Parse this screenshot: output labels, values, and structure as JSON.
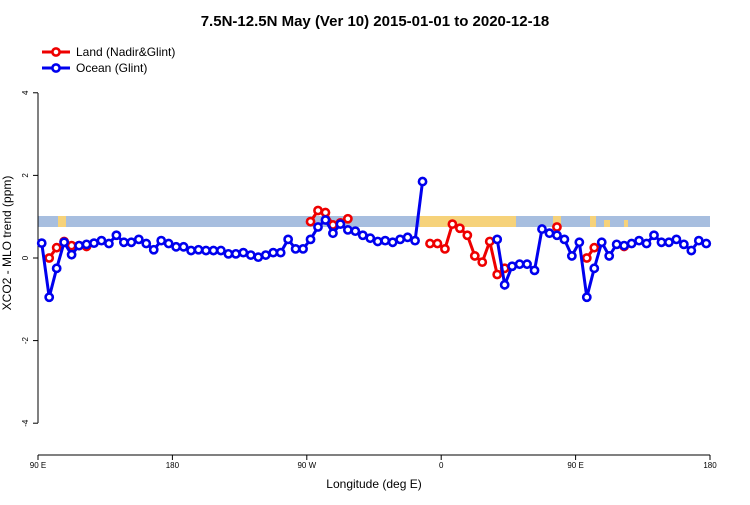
{
  "chart_data": {
    "type": "line",
    "title": "7.5N-12.5N May (Ver 10)   2015-01-01 to 2020-12-18",
    "x_label": "Longitude (deg E)",
    "y_label": "XCO2 - MLO trend (ppm)",
    "x": [
      92.5,
      97.5,
      102.5,
      107.5,
      112.5,
      117.5,
      122.5,
      127.5,
      132.5,
      137.5,
      142.5,
      147.5,
      152.5,
      157.5,
      162.5,
      167.5,
      172.5,
      177.5,
      182.5,
      187.5,
      192.5,
      197.5,
      202.5,
      207.5,
      212.5,
      217.5,
      222.5,
      227.5,
      232.5,
      237.5,
      242.5,
      247.5,
      252.5,
      257.5,
      262.5,
      267.5,
      272.5,
      277.5,
      282.5,
      287.5,
      292.5,
      297.5,
      302.5,
      307.5,
      312.5,
      317.5,
      322.5,
      327.5,
      332.5,
      337.5,
      342.5,
      347.5,
      352.5,
      357.5,
      362.5,
      367.5,
      372.5,
      377.5,
      382.5,
      387.5,
      392.5,
      397.5,
      402.5,
      407.5,
      412.5,
      417.5,
      422.5,
      427.5,
      432.5,
      437.5,
      442.5,
      447.5,
      452.5,
      457.5,
      462.5,
      467.5,
      472.5,
      477.5,
      482.5,
      487.5,
      492.5,
      497.5,
      502.5,
      507.5,
      512.5,
      517.5,
      522.5,
      527.5,
      532.5,
      537.5
    ],
    "series": [
      {
        "name": "Land (Nadir&Glint)",
        "color": "#ee0000",
        "values": [
          null,
          0.0,
          0.25,
          0.4,
          0.3,
          0.3,
          0.28,
          null,
          null,
          null,
          null,
          null,
          null,
          null,
          null,
          null,
          null,
          null,
          null,
          null,
          null,
          null,
          null,
          null,
          null,
          null,
          null,
          null,
          null,
          null,
          null,
          null,
          null,
          null,
          null,
          null,
          0.88,
          1.15,
          1.1,
          0.8,
          0.85,
          0.95,
          null,
          null,
          null,
          null,
          null,
          null,
          null,
          null,
          null,
          null,
          0.35,
          0.35,
          0.22,
          0.82,
          0.72,
          0.55,
          0.05,
          -0.1,
          0.4,
          -0.4,
          -0.25,
          null,
          null,
          null,
          null,
          null,
          null,
          0.75,
          null,
          null,
          null,
          0.0,
          0.25,
          null,
          null,
          null,
          0.28,
          null,
          null,
          null,
          null,
          null,
          null,
          null,
          null,
          null,
          null,
          null
        ]
      },
      {
        "name": "Ocean (Glint)",
        "color": "#0000ee",
        "values": [
          0.36,
          -0.95,
          -0.25,
          0.38,
          0.08,
          0.3,
          0.33,
          0.36,
          0.42,
          0.35,
          0.55,
          0.38,
          0.38,
          0.45,
          0.35,
          0.2,
          0.42,
          0.35,
          0.27,
          0.27,
          0.18,
          0.2,
          0.18,
          0.18,
          0.18,
          0.1,
          0.1,
          0.13,
          0.07,
          0.02,
          0.07,
          0.13,
          0.13,
          0.45,
          0.22,
          0.22,
          0.45,
          0.75,
          0.92,
          0.6,
          0.82,
          0.68,
          0.65,
          0.55,
          0.48,
          0.4,
          0.42,
          0.38,
          0.45,
          0.5,
          0.42,
          1.85,
          null,
          null,
          null,
          null,
          null,
          null,
          null,
          null,
          null,
          0.45,
          -0.65,
          -0.2,
          -0.15,
          -0.15,
          -0.3,
          0.7,
          0.6,
          0.55,
          0.45,
          0.05,
          0.38,
          -0.95,
          -0.25,
          0.38,
          0.05,
          0.33,
          0.3,
          0.35,
          0.42,
          0.35,
          0.55,
          0.38,
          0.38,
          0.45,
          0.33,
          0.18,
          0.42,
          0.35
        ]
      }
    ],
    "xlim": [
      90,
      540
    ],
    "xticks": [
      {
        "value": 90,
        "label": "90 E"
      },
      180,
      {
        "value": 270,
        "label": "90 W"
      },
      {
        "value": 360,
        "label": "0"
      },
      {
        "value": 450,
        "label": "90 E"
      },
      {
        "value": 540,
        "label": "180"
      }
    ],
    "ylim": [
      -4.77,
      5.52
    ],
    "yticks": [
      -4,
      -2,
      0,
      2,
      4
    ],
    "legend": "top-left"
  }
}
